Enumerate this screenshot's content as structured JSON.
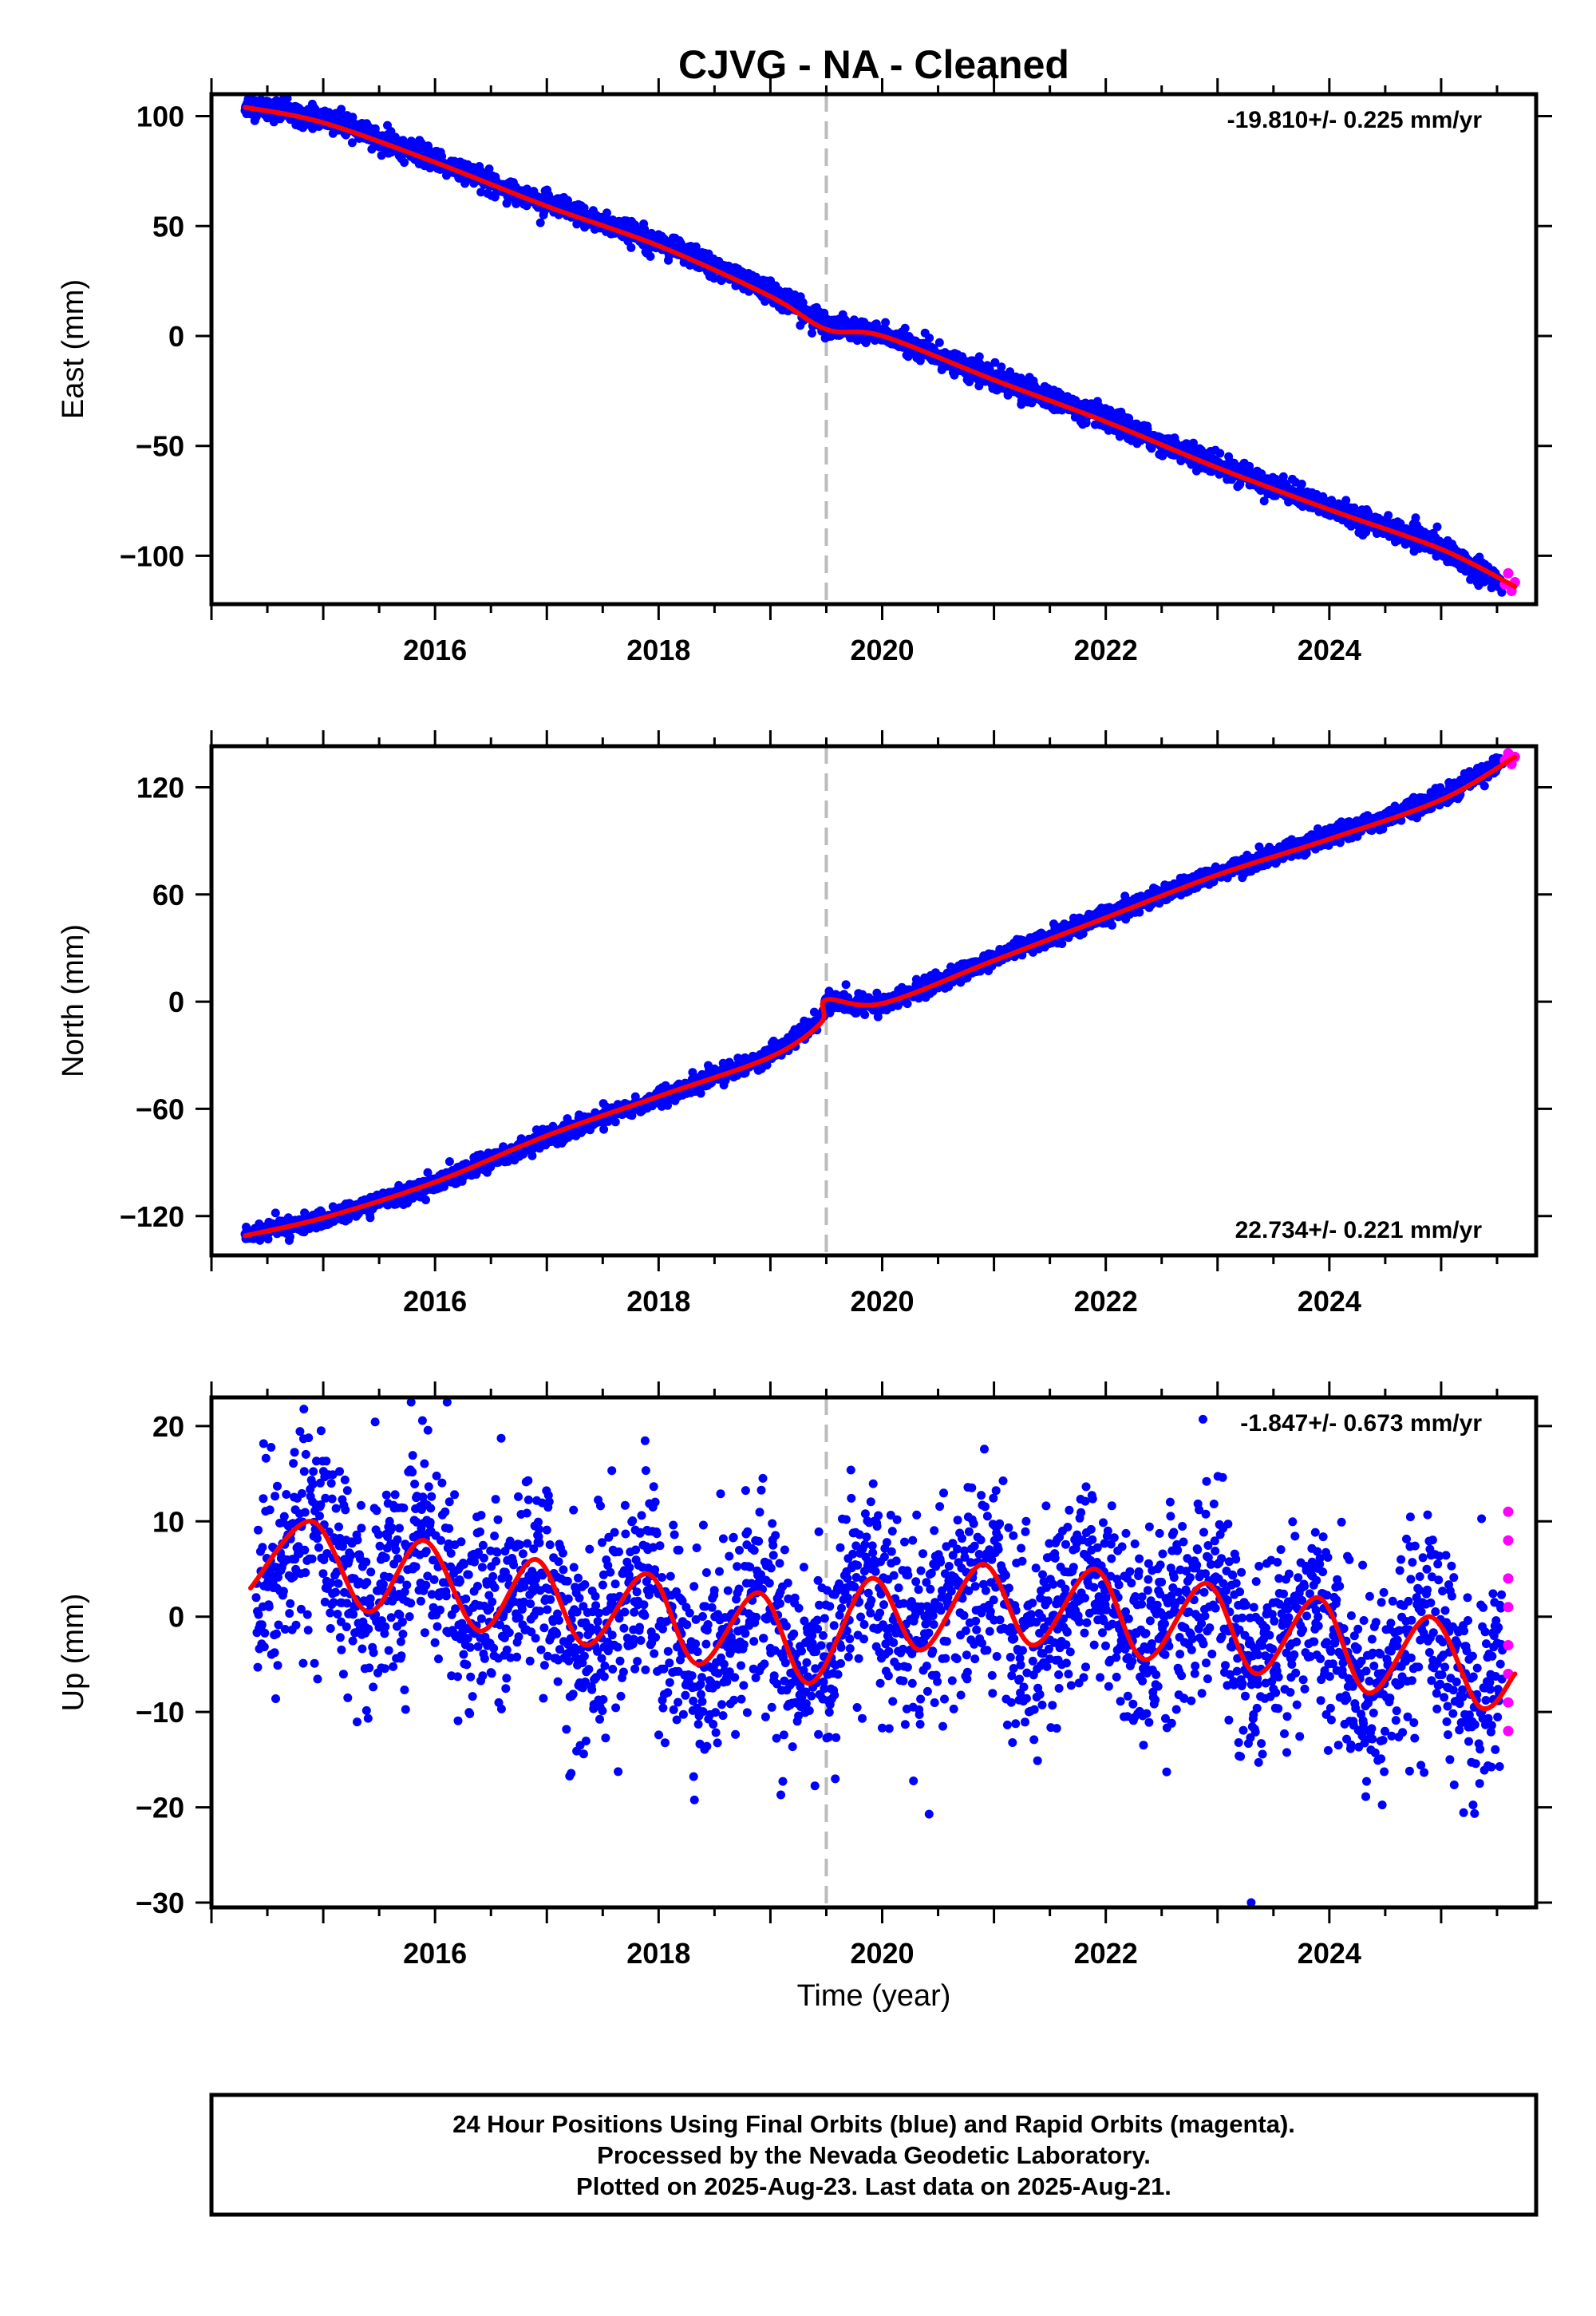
{
  "title": "CJVG  - NA - Cleaned",
  "colors": {
    "final_orbits": "#0000ff",
    "rapid_orbits": "#ff00ff",
    "model_fit": "#ff0000",
    "offset_line": "#bbbbbb",
    "frame": "#000000"
  },
  "offset_epoch": 2019.5,
  "xlabel": "Time (year)",
  "x_ticks": [
    2016,
    2018,
    2020,
    2022,
    2024
  ],
  "xlim": [
    2014.0,
    2025.85
  ],
  "chart_data": [
    {
      "type": "scatter",
      "component": "east",
      "ylabel": "East (mm)",
      "ylim": [
        -122,
        110
      ],
      "y_ticks": [
        100,
        50,
        0,
        -50,
        -100
      ],
      "rate_label": "-19.810+/- 0.225 mm/yr",
      "rate_position": "top-right",
      "series": [
        {
          "name": "Final Orbits (blue)",
          "x": [
            2014.3,
            2015.0,
            2016.0,
            2017.0,
            2018.0,
            2019.0,
            2019.5,
            2020.0,
            2021.0,
            2022.0,
            2023.0,
            2024.0,
            2025.0,
            2025.55
          ],
          "y": [
            105,
            99,
            80,
            60,
            43,
            20,
            5,
            1,
            -19,
            -38,
            -59,
            -78,
            -96,
            -113
          ]
        },
        {
          "name": "Rapid Orbits (magenta)",
          "x": [
            2025.57,
            2025.6,
            2025.63,
            2025.66
          ],
          "y": [
            -113,
            -108,
            -116,
            -112
          ]
        },
        {
          "name": "Model fit",
          "x": [
            2014.3,
            2015.0,
            2016.0,
            2017.0,
            2018.0,
            2019.0,
            2019.5,
            2020.0,
            2021.0,
            2022.0,
            2023.0,
            2024.0,
            2025.0,
            2025.66
          ],
          "y": [
            104,
            97,
            79,
            59,
            41,
            18,
            3,
            0,
            -20,
            -39,
            -60,
            -79,
            -97,
            -114
          ]
        }
      ]
    },
    {
      "type": "scatter",
      "component": "north",
      "ylabel": "North (mm)",
      "ylim": [
        -142,
        143
      ],
      "y_ticks": [
        120,
        60,
        0,
        -60,
        -120
      ],
      "rate_label": "22.734+/- 0.221 mm/yr",
      "rate_position": "bottom-right",
      "series": [
        {
          "name": "Final Orbits (blue)",
          "x": [
            2014.3,
            2015.0,
            2016.0,
            2017.0,
            2018.0,
            2019.0,
            2019.45,
            2019.5,
            2020.0,
            2021.0,
            2022.0,
            2023.0,
            2024.0,
            2025.0,
            2025.55
          ],
          "y": [
            -130,
            -122,
            -102,
            -76,
            -54,
            -30,
            -10,
            0,
            -2,
            24,
            48,
            72,
            92,
            114,
            135
          ]
        },
        {
          "name": "Rapid Orbits (magenta)",
          "x": [
            2025.57,
            2025.6,
            2025.63,
            2025.66
          ],
          "y": [
            135,
            139,
            133,
            137
          ]
        },
        {
          "name": "Model fit",
          "x": [
            2014.3,
            2015.0,
            2016.0,
            2017.0,
            2018.0,
            2019.0,
            2019.45,
            2019.5,
            2020.0,
            2021.0,
            2022.0,
            2023.0,
            2024.0,
            2025.0,
            2025.66
          ],
          "y": [
            -131,
            -121,
            -101,
            -75,
            -53,
            -31,
            -12,
            1,
            -1,
            23,
            47,
            71,
            91,
            113,
            137
          ]
        }
      ]
    },
    {
      "type": "scatter",
      "component": "up",
      "ylabel": "Up (mm)",
      "ylim": [
        -30.5,
        23
      ],
      "y_ticks": [
        20,
        10,
        0,
        -10,
        -20,
        -30
      ],
      "rate_label": "-1.847+/- 0.673 mm/yr",
      "rate_position": "top-right",
      "series": [
        {
          "name": "Final Orbits (blue)",
          "x": [
            2014.4,
            2014.9,
            2015.4,
            2015.9,
            2016.4,
            2016.9,
            2017.3,
            2017.9,
            2018.3,
            2018.9,
            2019.3,
            2019.9,
            2020.3,
            2020.9,
            2021.3,
            2021.9,
            2022.3,
            2022.9,
            2023.3,
            2023.9,
            2024.3,
            2024.9,
            2025.3,
            2025.55
          ],
          "y": [
            3,
            10,
            1,
            8,
            -1,
            6,
            -3,
            4,
            -5,
            2,
            -7,
            4,
            -3,
            5,
            -3,
            5,
            -4,
            3,
            -6,
            2,
            -8,
            0,
            -9,
            -6
          ]
        },
        {
          "name": "Rapid Orbits (magenta)",
          "x": [
            2025.6,
            2025.6,
            2025.6,
            2025.6,
            2025.6,
            2025.6,
            2025.6,
            2025.6
          ],
          "y": [
            11,
            8,
            4,
            1,
            -3,
            -6,
            -9,
            -12
          ]
        },
        {
          "name": "Model fit",
          "x": [
            2014.35,
            2014.9,
            2015.4,
            2015.9,
            2016.4,
            2016.9,
            2017.35,
            2017.9,
            2018.35,
            2018.9,
            2019.35,
            2019.9,
            2020.35,
            2020.9,
            2021.35,
            2021.9,
            2022.35,
            2022.9,
            2023.35,
            2023.9,
            2024.35,
            2024.9,
            2025.35,
            2025.66
          ],
          "y": [
            3,
            10,
            0.5,
            8,
            -1.5,
            6,
            -3,
            4.5,
            -5,
            2.5,
            -7,
            4,
            -3.5,
            5.5,
            -3,
            5,
            -4.5,
            3.5,
            -6,
            2,
            -8,
            0,
            -9.5,
            -6
          ]
        }
      ]
    }
  ],
  "footer": {
    "line1": "24 Hour Positions Using Final Orbits (blue) and Rapid Orbits (magenta).",
    "line2": "Processed by the Nevada Geodetic Laboratory.",
    "line3": "Plotted on 2025-Aug-23. Last data on 2025-Aug-21."
  }
}
